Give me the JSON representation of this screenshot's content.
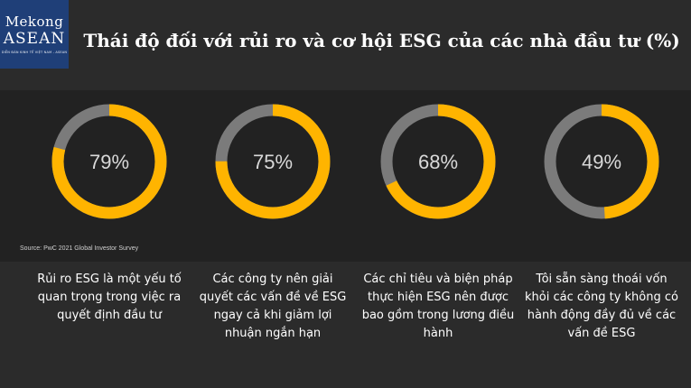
{
  "logo": {
    "line1": "Mekong",
    "line2": "ASEAN",
    "tagline": "DIỄN ĐÀN KINH TẾ VIỆT NAM - ASEAN"
  },
  "title": "Thái độ đối với rủi ro và cơ hội ESG của các nhà đầu tư (%)",
  "source": "Source: PwC 2021 Global Investor Survey",
  "colors": {
    "accent": "#ffb400",
    "remainder": "#7b7b7b",
    "background": "#2b2b2b",
    "panel": "#222222",
    "text": "#ffffff"
  },
  "chart_data": {
    "type": "pie",
    "variant": "donut",
    "unit": "%",
    "items": [
      {
        "value": 79,
        "label": "79%",
        "caption": "Rủi ro ESG là một yếu tố quan trọng trong việc ra quyết định đầu tư"
      },
      {
        "value": 75,
        "label": "75%",
        "caption": "Các công ty nên giải quyết các vấn đề về ESG ngay cả khi giảm lợi nhuận ngắn hạn"
      },
      {
        "value": 68,
        "label": "68%",
        "caption": "Các chỉ tiêu và biện pháp thực hiện ESG nên được bao gồm trong lương điều hành"
      },
      {
        "value": 49,
        "label": "49%",
        "caption": "Tôi sẵn sàng thoái vốn khỏi các công ty không có hành động đầy đủ về các vấn đề ESG"
      }
    ]
  }
}
